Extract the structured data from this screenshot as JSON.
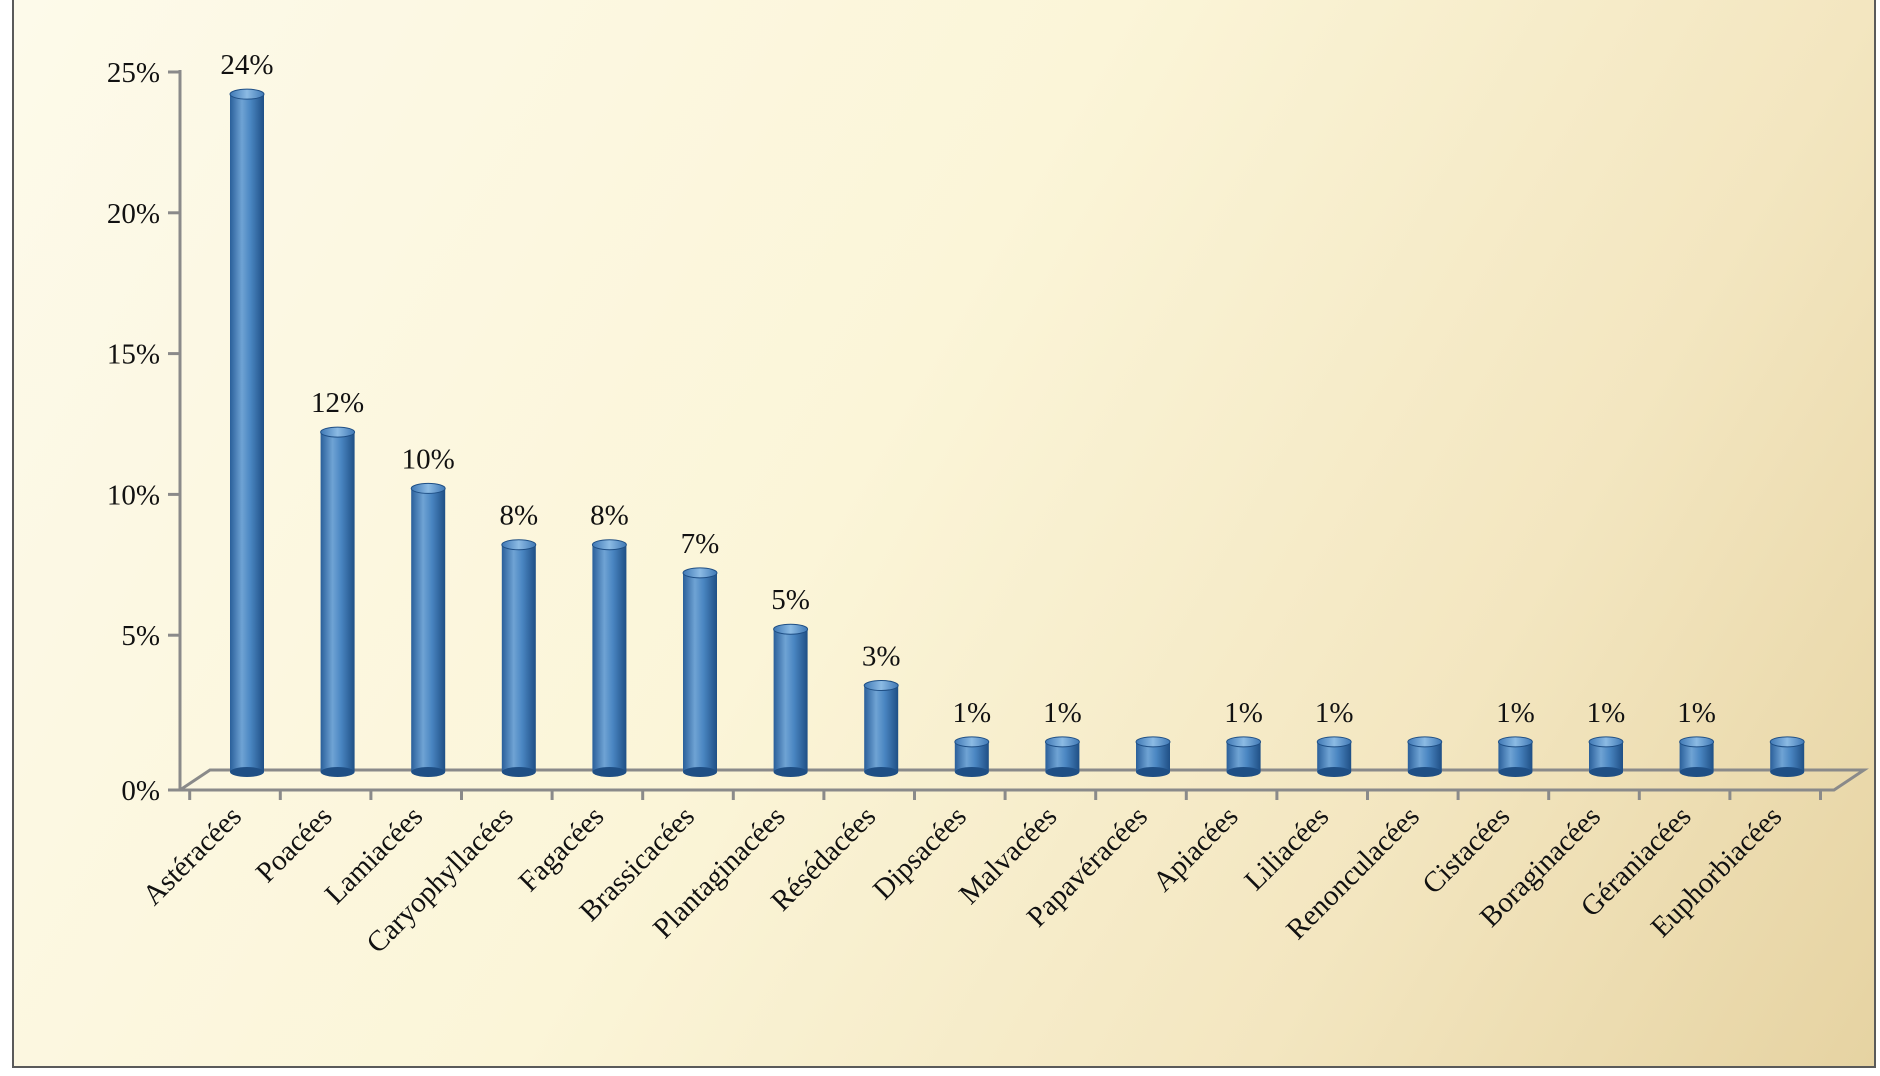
{
  "chart_data": {
    "type": "bar",
    "title": "",
    "xlabel": "",
    "ylabel": "",
    "ylim": [
      0,
      25
    ],
    "yticks": [
      "0%",
      "5%",
      "10%",
      "15%",
      "20%",
      "25%"
    ],
    "ytick_values": [
      0,
      5,
      10,
      15,
      20,
      25
    ],
    "categories": [
      "Astéracées",
      "Poacées",
      "Lamiacées",
      "Caryophyllacées",
      "Fagacées",
      "Brassicacées",
      "Plantaginacées",
      "Résédacées",
      "Dipsacées",
      "Malvacées",
      "Papavéracées",
      "Apiacées",
      "Liliacées",
      "Renonculacées",
      "Cistacées",
      "Boraginacées",
      "Géraniacées",
      "Euphorbiacées"
    ],
    "values": [
      24,
      12,
      10,
      8,
      8,
      7,
      5,
      3,
      1,
      1,
      1,
      1,
      1,
      1,
      1,
      1,
      1,
      1
    ],
    "data_labels": [
      "24%",
      "12%",
      "10%",
      "8%",
      "8%",
      "7%",
      "5%",
      "3%",
      "1%",
      "1%",
      "",
      "1%",
      "1%",
      "",
      "1%",
      "1%",
      "1%",
      ""
    ],
    "grid": false,
    "legend": "none",
    "colors": {
      "bar": "#3f78b5",
      "bar_light": "#7fb0dc",
      "bar_dark": "#1f4f85",
      "axis": "#8a8a8a",
      "frame": "#5a5a5a",
      "background_light": "#fdfaea",
      "background_dark": "#e6d3a2"
    }
  }
}
